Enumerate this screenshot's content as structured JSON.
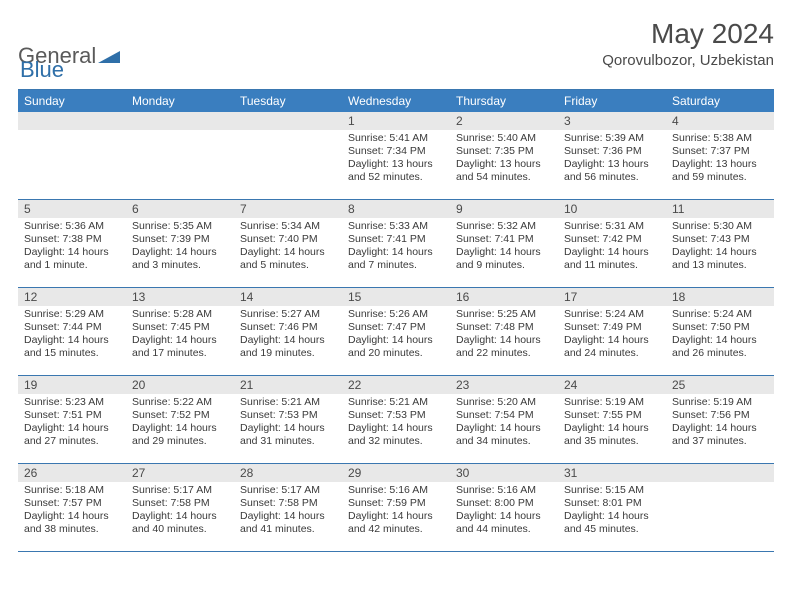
{
  "brand": {
    "part1": "General",
    "part2": "Blue"
  },
  "title": "May 2024",
  "location": "Qorovulbozor, Uzbekistan",
  "colors": {
    "header_bg": "#3a7ebf",
    "divider": "#3a77b0",
    "daybar_bg": "#e8e8e8",
    "text": "#3a3a3a"
  },
  "weekdays": [
    "Sunday",
    "Monday",
    "Tuesday",
    "Wednesday",
    "Thursday",
    "Friday",
    "Saturday"
  ],
  "leading_blanks": 3,
  "days": [
    {
      "n": "1",
      "sr": "Sunrise: 5:41 AM",
      "ss": "Sunset: 7:34 PM",
      "dl": "Daylight: 13 hours and 52 minutes."
    },
    {
      "n": "2",
      "sr": "Sunrise: 5:40 AM",
      "ss": "Sunset: 7:35 PM",
      "dl": "Daylight: 13 hours and 54 minutes."
    },
    {
      "n": "3",
      "sr": "Sunrise: 5:39 AM",
      "ss": "Sunset: 7:36 PM",
      "dl": "Daylight: 13 hours and 56 minutes."
    },
    {
      "n": "4",
      "sr": "Sunrise: 5:38 AM",
      "ss": "Sunset: 7:37 PM",
      "dl": "Daylight: 13 hours and 59 minutes."
    },
    {
      "n": "5",
      "sr": "Sunrise: 5:36 AM",
      "ss": "Sunset: 7:38 PM",
      "dl": "Daylight: 14 hours and 1 minute."
    },
    {
      "n": "6",
      "sr": "Sunrise: 5:35 AM",
      "ss": "Sunset: 7:39 PM",
      "dl": "Daylight: 14 hours and 3 minutes."
    },
    {
      "n": "7",
      "sr": "Sunrise: 5:34 AM",
      "ss": "Sunset: 7:40 PM",
      "dl": "Daylight: 14 hours and 5 minutes."
    },
    {
      "n": "8",
      "sr": "Sunrise: 5:33 AM",
      "ss": "Sunset: 7:41 PM",
      "dl": "Daylight: 14 hours and 7 minutes."
    },
    {
      "n": "9",
      "sr": "Sunrise: 5:32 AM",
      "ss": "Sunset: 7:41 PM",
      "dl": "Daylight: 14 hours and 9 minutes."
    },
    {
      "n": "10",
      "sr": "Sunrise: 5:31 AM",
      "ss": "Sunset: 7:42 PM",
      "dl": "Daylight: 14 hours and 11 minutes."
    },
    {
      "n": "11",
      "sr": "Sunrise: 5:30 AM",
      "ss": "Sunset: 7:43 PM",
      "dl": "Daylight: 14 hours and 13 minutes."
    },
    {
      "n": "12",
      "sr": "Sunrise: 5:29 AM",
      "ss": "Sunset: 7:44 PM",
      "dl": "Daylight: 14 hours and 15 minutes."
    },
    {
      "n": "13",
      "sr": "Sunrise: 5:28 AM",
      "ss": "Sunset: 7:45 PM",
      "dl": "Daylight: 14 hours and 17 minutes."
    },
    {
      "n": "14",
      "sr": "Sunrise: 5:27 AM",
      "ss": "Sunset: 7:46 PM",
      "dl": "Daylight: 14 hours and 19 minutes."
    },
    {
      "n": "15",
      "sr": "Sunrise: 5:26 AM",
      "ss": "Sunset: 7:47 PM",
      "dl": "Daylight: 14 hours and 20 minutes."
    },
    {
      "n": "16",
      "sr": "Sunrise: 5:25 AM",
      "ss": "Sunset: 7:48 PM",
      "dl": "Daylight: 14 hours and 22 minutes."
    },
    {
      "n": "17",
      "sr": "Sunrise: 5:24 AM",
      "ss": "Sunset: 7:49 PM",
      "dl": "Daylight: 14 hours and 24 minutes."
    },
    {
      "n": "18",
      "sr": "Sunrise: 5:24 AM",
      "ss": "Sunset: 7:50 PM",
      "dl": "Daylight: 14 hours and 26 minutes."
    },
    {
      "n": "19",
      "sr": "Sunrise: 5:23 AM",
      "ss": "Sunset: 7:51 PM",
      "dl": "Daylight: 14 hours and 27 minutes."
    },
    {
      "n": "20",
      "sr": "Sunrise: 5:22 AM",
      "ss": "Sunset: 7:52 PM",
      "dl": "Daylight: 14 hours and 29 minutes."
    },
    {
      "n": "21",
      "sr": "Sunrise: 5:21 AM",
      "ss": "Sunset: 7:53 PM",
      "dl": "Daylight: 14 hours and 31 minutes."
    },
    {
      "n": "22",
      "sr": "Sunrise: 5:21 AM",
      "ss": "Sunset: 7:53 PM",
      "dl": "Daylight: 14 hours and 32 minutes."
    },
    {
      "n": "23",
      "sr": "Sunrise: 5:20 AM",
      "ss": "Sunset: 7:54 PM",
      "dl": "Daylight: 14 hours and 34 minutes."
    },
    {
      "n": "24",
      "sr": "Sunrise: 5:19 AM",
      "ss": "Sunset: 7:55 PM",
      "dl": "Daylight: 14 hours and 35 minutes."
    },
    {
      "n": "25",
      "sr": "Sunrise: 5:19 AM",
      "ss": "Sunset: 7:56 PM",
      "dl": "Daylight: 14 hours and 37 minutes."
    },
    {
      "n": "26",
      "sr": "Sunrise: 5:18 AM",
      "ss": "Sunset: 7:57 PM",
      "dl": "Daylight: 14 hours and 38 minutes."
    },
    {
      "n": "27",
      "sr": "Sunrise: 5:17 AM",
      "ss": "Sunset: 7:58 PM",
      "dl": "Daylight: 14 hours and 40 minutes."
    },
    {
      "n": "28",
      "sr": "Sunrise: 5:17 AM",
      "ss": "Sunset: 7:58 PM",
      "dl": "Daylight: 14 hours and 41 minutes."
    },
    {
      "n": "29",
      "sr": "Sunrise: 5:16 AM",
      "ss": "Sunset: 7:59 PM",
      "dl": "Daylight: 14 hours and 42 minutes."
    },
    {
      "n": "30",
      "sr": "Sunrise: 5:16 AM",
      "ss": "Sunset: 8:00 PM",
      "dl": "Daylight: 14 hours and 44 minutes."
    },
    {
      "n": "31",
      "sr": "Sunrise: 5:15 AM",
      "ss": "Sunset: 8:01 PM",
      "dl": "Daylight: 14 hours and 45 minutes."
    }
  ]
}
